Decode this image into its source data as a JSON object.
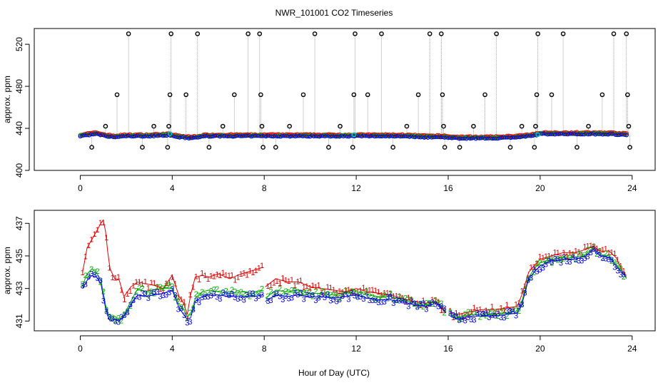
{
  "chart_data": {
    "title": "NWR_101001  CO2 Timeseries",
    "xlabel": "Hour of Day (UTC)",
    "xlim": [
      -2,
      25
    ],
    "xticks": [
      0,
      4,
      8,
      12,
      16,
      20,
      24
    ],
    "xtick_labels": [
      "0",
      "4",
      "8",
      "12",
      "16",
      "20",
      "24"
    ],
    "colors": {
      "level1": "#dd0000",
      "level2": "#00aa00",
      "level3": "#0000dd",
      "cal": "#00cccc",
      "excluded": "#000000",
      "trace": "#888888"
    },
    "panels": [
      {
        "type": "scatter",
        "ylabel": "approx. ppm",
        "ylim": [
          400,
          535
        ],
        "yticks": [
          400,
          440,
          480,
          520
        ],
        "ytick_labels": [
          "400",
          "440",
          "480",
          "520"
        ],
        "baseline": [
          [
            0,
            433
          ],
          [
            0.3,
            434
          ],
          [
            0.7,
            435
          ],
          [
            1.1,
            433
          ],
          [
            1.5,
            432
          ],
          [
            2.0,
            433
          ],
          [
            3.0,
            433
          ],
          [
            3.8,
            434
          ],
          [
            4.3,
            432
          ],
          [
            4.8,
            431
          ],
          [
            5.5,
            433
          ],
          [
            6.5,
            433
          ],
          [
            7.5,
            433
          ],
          [
            8.5,
            433
          ],
          [
            10,
            433
          ],
          [
            11,
            433
          ],
          [
            12,
            433
          ],
          [
            13,
            433
          ],
          [
            14,
            433
          ],
          [
            15,
            432
          ],
          [
            15.9,
            432
          ],
          [
            16.2,
            431
          ],
          [
            17,
            431
          ],
          [
            18,
            431
          ],
          [
            19,
            432
          ],
          [
            19.6,
            433
          ],
          [
            20,
            435
          ],
          [
            21,
            435
          ],
          [
            22,
            435
          ],
          [
            23,
            435
          ],
          [
            23.8,
            434
          ]
        ],
        "excluded_points": [
          [
            0.5,
            422
          ],
          [
            1.1,
            442
          ],
          [
            1.6,
            472
          ],
          [
            2.1,
            530
          ],
          [
            2.7,
            422
          ],
          [
            3.2,
            442
          ],
          [
            3.8,
            422
          ],
          [
            3.85,
            442
          ],
          [
            3.9,
            472
          ],
          [
            3.95,
            530
          ],
          [
            4.6,
            472
          ],
          [
            5.1,
            530
          ],
          [
            5.6,
            422
          ],
          [
            6.2,
            442
          ],
          [
            6.7,
            472
          ],
          [
            7.3,
            530
          ],
          [
            7.8,
            530
          ],
          [
            7.85,
            472
          ],
          [
            7.9,
            442
          ],
          [
            7.95,
            422
          ],
          [
            8.5,
            422
          ],
          [
            9.1,
            442
          ],
          [
            9.7,
            472
          ],
          [
            10.2,
            530
          ],
          [
            10.8,
            422
          ],
          [
            11.3,
            442
          ],
          [
            11.85,
            422
          ],
          [
            11.9,
            472
          ],
          [
            11.95,
            530
          ],
          [
            12.5,
            472
          ],
          [
            13.1,
            530
          ],
          [
            13.6,
            422
          ],
          [
            14.2,
            442
          ],
          [
            14.7,
            472
          ],
          [
            15.2,
            530
          ],
          [
            15.7,
            530
          ],
          [
            15.75,
            472
          ],
          [
            15.8,
            442
          ],
          [
            15.85,
            422
          ],
          [
            16.5,
            422
          ],
          [
            17.1,
            442
          ],
          [
            17.6,
            472
          ],
          [
            18.1,
            530
          ],
          [
            18.7,
            422
          ],
          [
            19.2,
            442
          ],
          [
            19.75,
            422
          ],
          [
            19.8,
            442
          ],
          [
            19.85,
            472
          ],
          [
            19.9,
            530
          ],
          [
            20.5,
            472
          ],
          [
            21.0,
            530
          ],
          [
            21.6,
            422
          ],
          [
            22.1,
            442
          ],
          [
            22.7,
            472
          ],
          [
            23.2,
            530
          ],
          [
            23.75,
            530
          ],
          [
            23.8,
            472
          ],
          [
            23.85,
            442
          ],
          [
            23.9,
            422
          ]
        ],
        "cal_points": [
          [
            3.9,
            435
          ],
          [
            11.9,
            434
          ],
          [
            19.9,
            434
          ]
        ]
      },
      {
        "type": "line",
        "ylabel": "approx. ppm",
        "ylim": [
          430.4,
          437.8
        ],
        "yticks": [
          431,
          433,
          435,
          437
        ],
        "ytick_labels": [
          "431",
          "433",
          "435",
          "437"
        ],
        "gaps": [
          [
            7.95,
            8.05
          ],
          [
            15.95,
            16.05
          ]
        ],
        "series": [
          {
            "name": "1",
            "color": "#dd0000",
            "offset": 0.0,
            "x": [
              0.1,
              0.3,
              0.5,
              0.7,
              0.9,
              1.0,
              1.1,
              1.2,
              1.3,
              1.5,
              1.7,
              1.9,
              2.2,
              2.5,
              2.8,
              3.2,
              3.6,
              4.0,
              4.3,
              4.5,
              4.65,
              4.8,
              5.0,
              5.3,
              5.6,
              6.0,
              6.5,
              7.0,
              7.5,
              7.95,
              8.05,
              8.5,
              9.0,
              9.5,
              10.0,
              10.5,
              11.0,
              11.5,
              12.0,
              12.5,
              13.0,
              13.5,
              14.0,
              14.5,
              15.0,
              15.5,
              15.9,
              16.1,
              16.4,
              17.0,
              17.5,
              18.0,
              18.5,
              19.0,
              19.2,
              19.5,
              19.8,
              20.0,
              20.5,
              21.0,
              21.5,
              22.0,
              22.3,
              22.6,
              23.0,
              23.3,
              23.6,
              23.75
            ],
            "y": [
              434,
              435.5,
              436,
              436.5,
              437,
              437.2,
              436.5,
              435.2,
              434.2,
              433.6,
              433.5,
              432.5,
              433.1,
              433.4,
              433.3,
              433.2,
              433.0,
              433.8,
              432.5,
              432.1,
              431.4,
              432.6,
              433.7,
              433.8,
              433.7,
              433.9,
              433.6,
              433.9,
              434.1,
              434.3,
              433.1,
              433.6,
              433.4,
              433.4,
              433.1,
              433.0,
              432.9,
              432.8,
              433.0,
              432.8,
              432.7,
              432.6,
              432.4,
              432.2,
              432.1,
              432.2,
              431.5,
              431.5,
              431.4,
              431.6,
              431.7,
              431.7,
              431.8,
              431.9,
              432.6,
              434.0,
              434.5,
              434.8,
              435.0,
              435.2,
              435.2,
              435.4,
              435.6,
              435.3,
              435.3,
              434.9,
              434.0,
              433.8
            ]
          },
          {
            "name": "2",
            "color": "#00aa00",
            "offset": 0.0,
            "x": [
              0.1,
              0.3,
              0.5,
              0.7,
              0.9,
              1.0,
              1.1,
              1.2,
              1.3,
              1.5,
              1.7,
              1.9,
              2.2,
              2.5,
              2.8,
              3.2,
              3.6,
              4.0,
              4.3,
              4.5,
              4.65,
              4.8,
              5.0,
              5.3,
              5.6,
              6.0,
              6.5,
              7.0,
              7.5,
              7.95,
              8.05,
              8.5,
              9.0,
              9.5,
              10.0,
              10.5,
              11.0,
              11.5,
              12.0,
              12.5,
              13.0,
              13.5,
              14.0,
              14.5,
              15.0,
              15.5,
              15.9,
              16.1,
              16.4,
              17.0,
              17.5,
              18.0,
              18.5,
              19.0,
              19.2,
              19.5,
              19.8,
              20.0,
              20.5,
              21.0,
              21.5,
              22.0,
              22.3,
              22.6,
              23.0,
              23.3,
              23.6,
              23.75
            ],
            "y": [
              433.2,
              433.9,
              434.2,
              434.0,
              433.5,
              432.8,
              432.0,
              431.5,
              431.2,
              431.3,
              431.1,
              431.4,
              432.2,
              433.0,
              432.8,
              432.9,
              433.0,
              433.0,
              432.0,
              431.7,
              431.3,
              431.4,
              432.4,
              432.8,
              432.9,
              432.8,
              432.7,
              432.8,
              432.7,
              432.9,
              432.4,
              432.9,
              432.8,
              432.9,
              432.7,
              432.7,
              432.6,
              432.7,
              432.8,
              432.6,
              432.5,
              432.5,
              432.3,
              432.1,
              432.0,
              432.2,
              431.6,
              431.4,
              431.2,
              431.4,
              431.4,
              431.4,
              431.5,
              431.6,
              432.2,
              433.7,
              434.3,
              434.6,
              434.8,
              434.9,
              434.9,
              435.1,
              435.5,
              435.1,
              435.0,
              434.5,
              434.0,
              433.6
            ]
          },
          {
            "name": "3",
            "color": "#0000dd",
            "offset": 0.0,
            "x": [
              0.1,
              0.3,
              0.5,
              0.7,
              0.9,
              1.0,
              1.1,
              1.2,
              1.3,
              1.5,
              1.7,
              1.9,
              2.2,
              2.5,
              2.8,
              3.2,
              3.6,
              4.0,
              4.3,
              4.5,
              4.65,
              4.8,
              5.0,
              5.3,
              5.6,
              6.0,
              6.5,
              7.0,
              7.5,
              7.95,
              8.05,
              8.5,
              9.0,
              9.5,
              10.0,
              10.5,
              11.0,
              11.5,
              12.0,
              12.5,
              13.0,
              13.5,
              14.0,
              14.5,
              15.0,
              15.5,
              15.9,
              16.1,
              16.4,
              17.0,
              17.5,
              18.0,
              18.5,
              19.0,
              19.2,
              19.5,
              19.8,
              20.0,
              20.5,
              21.0,
              21.5,
              22.0,
              22.3,
              22.6,
              23.0,
              23.3,
              23.6,
              23.75
            ],
            "y": [
              433.0,
              433.5,
              433.8,
              433.7,
              433.3,
              432.5,
              431.8,
              431.3,
              431.0,
              431.1,
              431.0,
              431.3,
              432.0,
              432.6,
              432.5,
              432.6,
              432.7,
              432.9,
              431.8,
              431.4,
              431.1,
              431.2,
              432.2,
              432.5,
              432.6,
              432.6,
              432.5,
              432.5,
              432.5,
              432.6,
              432.2,
              432.6,
              432.5,
              432.6,
              432.5,
              432.5,
              432.4,
              432.5,
              432.6,
              432.4,
              432.3,
              432.3,
              432.2,
              432.0,
              431.9,
              432.1,
              431.5,
              431.3,
              431.1,
              431.3,
              431.3,
              431.3,
              431.4,
              431.5,
              432.0,
              433.6,
              434.1,
              434.4,
              434.7,
              434.8,
              434.8,
              435.0,
              435.4,
              435.0,
              434.9,
              434.4,
              433.9,
              433.7
            ]
          }
        ]
      }
    ]
  }
}
